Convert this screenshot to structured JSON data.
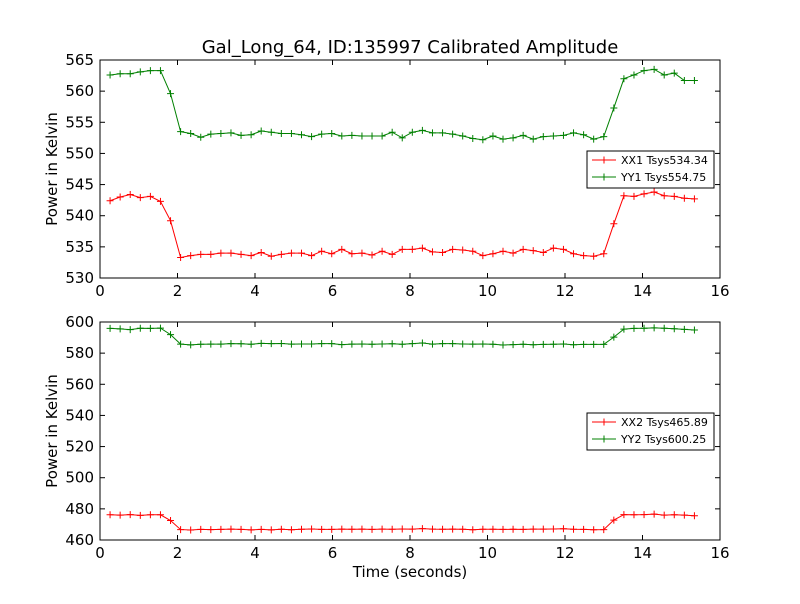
{
  "figure": {
    "title": "Gal_Long_64, ID:135997 Calibrated Amplitude"
  },
  "chart_data": [
    {
      "type": "line",
      "title": "Gal_Long_64, ID:135997 Calibrated Amplitude",
      "xlabel": "",
      "ylabel": "Power in Kelvin",
      "xlim": [
        0,
        16
      ],
      "ylim": [
        530,
        565
      ],
      "xticks": [
        "0",
        "2",
        "4",
        "6",
        "8",
        "10",
        "12",
        "14",
        "16"
      ],
      "yticks": [
        "530",
        "535",
        "540",
        "545",
        "550",
        "555",
        "560",
        "565"
      ],
      "grid": false,
      "legend_position": "center-right",
      "x": [
        0.26,
        0.52,
        0.78,
        1.04,
        1.3,
        1.56,
        1.82,
        2.08,
        2.34,
        2.6,
        2.86,
        3.12,
        3.38,
        3.64,
        3.9,
        4.16,
        4.42,
        4.68,
        4.94,
        5.2,
        5.46,
        5.72,
        5.98,
        6.24,
        6.5,
        6.76,
        7.02,
        7.28,
        7.54,
        7.8,
        8.06,
        8.32,
        8.58,
        8.84,
        9.1,
        9.36,
        9.62,
        9.88,
        10.14,
        10.4,
        10.66,
        10.92,
        11.18,
        11.44,
        11.7,
        11.96,
        12.22,
        12.48,
        12.74,
        13.0,
        13.26,
        13.52,
        13.78,
        14.04,
        14.3,
        14.56,
        14.82,
        15.08,
        15.34
      ],
      "series": [
        {
          "name": "XX1 Tsys534.34",
          "color": "#ff0000",
          "values": [
            542.4,
            543.0,
            543.4,
            542.9,
            543.1,
            542.3,
            539.2,
            533.3,
            533.6,
            533.8,
            533.8,
            534.0,
            534.0,
            533.8,
            533.6,
            534.1,
            533.5,
            533.8,
            534.0,
            534.0,
            533.6,
            534.3,
            533.9,
            534.6,
            533.9,
            534.0,
            533.7,
            534.3,
            533.8,
            534.6,
            534.6,
            534.8,
            534.2,
            534.1,
            534.6,
            534.5,
            534.3,
            533.6,
            533.9,
            534.3,
            534.0,
            534.6,
            534.4,
            534.1,
            534.8,
            534.6,
            533.9,
            533.6,
            533.5,
            533.9,
            538.7,
            543.2,
            543.1,
            543.5,
            543.8,
            543.2,
            543.1,
            542.8,
            542.7
          ]
        },
        {
          "name": "YY1 Tsys554.75",
          "color": "#008000",
          "values": [
            562.6,
            562.8,
            562.8,
            563.1,
            563.3,
            563.3,
            559.6,
            553.5,
            553.2,
            552.6,
            553.1,
            553.2,
            553.3,
            552.9,
            553.0,
            553.6,
            553.4,
            553.2,
            553.2,
            553.0,
            552.7,
            553.1,
            553.2,
            552.8,
            552.9,
            552.8,
            552.8,
            552.8,
            553.4,
            552.5,
            553.4,
            553.7,
            553.3,
            553.3,
            553.1,
            552.8,
            552.4,
            552.2,
            552.8,
            552.3,
            552.5,
            552.9,
            552.3,
            552.7,
            552.8,
            552.9,
            553.3,
            553.0,
            552.3,
            552.7,
            557.3,
            562.0,
            562.6,
            563.3,
            563.5,
            562.6,
            562.9,
            561.7,
            561.7
          ]
        }
      ]
    },
    {
      "type": "line",
      "title": "",
      "xlabel": "Time (seconds)",
      "ylabel": "Power in Kelvin",
      "xlim": [
        0,
        16
      ],
      "ylim": [
        460,
        600
      ],
      "xticks": [
        "0",
        "2",
        "4",
        "6",
        "8",
        "10",
        "12",
        "14",
        "16"
      ],
      "yticks": [
        "460",
        "480",
        "500",
        "520",
        "540",
        "560",
        "580",
        "600"
      ],
      "grid": false,
      "legend_position": "center-right",
      "x": [
        0.26,
        0.52,
        0.78,
        1.04,
        1.3,
        1.56,
        1.82,
        2.08,
        2.34,
        2.6,
        2.86,
        3.12,
        3.38,
        3.64,
        3.9,
        4.16,
        4.42,
        4.68,
        4.94,
        5.2,
        5.46,
        5.72,
        5.98,
        6.24,
        6.5,
        6.76,
        7.02,
        7.28,
        7.54,
        7.8,
        8.06,
        8.32,
        8.58,
        8.84,
        9.1,
        9.36,
        9.62,
        9.88,
        10.14,
        10.4,
        10.66,
        10.92,
        11.18,
        11.44,
        11.7,
        11.96,
        12.22,
        12.48,
        12.74,
        13.0,
        13.26,
        13.52,
        13.78,
        14.04,
        14.3,
        14.56,
        14.82,
        15.08,
        15.34
      ],
      "series": [
        {
          "name": "XX2 Tsys465.89",
          "color": "#ff0000",
          "values": [
            476.2,
            476.0,
            476.3,
            475.8,
            476.2,
            476.2,
            472.5,
            466.7,
            466.4,
            466.8,
            466.7,
            466.8,
            467.0,
            466.8,
            466.5,
            466.8,
            466.5,
            466.9,
            466.6,
            466.9,
            467.1,
            466.8,
            466.8,
            467.0,
            466.9,
            467.0,
            466.8,
            467.0,
            466.9,
            467.1,
            467.0,
            467.3,
            467.0,
            466.9,
            467.0,
            466.9,
            466.6,
            466.9,
            466.9,
            466.8,
            466.9,
            466.8,
            467.0,
            467.0,
            467.1,
            467.2,
            466.9,
            466.8,
            466.6,
            466.7,
            472.8,
            476.3,
            476.2,
            476.3,
            476.6,
            476.0,
            476.2,
            476.0,
            475.6
          ]
        },
        {
          "name": "YY2 Tsys600.25",
          "color": "#008000",
          "values": [
            595.9,
            595.6,
            595.1,
            596.0,
            595.9,
            596.1,
            591.9,
            585.8,
            585.3,
            585.7,
            585.8,
            585.8,
            586.1,
            586.0,
            585.7,
            586.3,
            586.1,
            586.2,
            585.8,
            585.9,
            585.9,
            586.1,
            586.1,
            585.5,
            585.8,
            585.9,
            585.7,
            585.9,
            586.0,
            585.7,
            586.1,
            586.5,
            585.8,
            586.1,
            586.1,
            585.9,
            585.8,
            585.9,
            585.7,
            585.2,
            585.5,
            585.7,
            585.4,
            585.6,
            585.7,
            585.9,
            585.4,
            585.6,
            585.6,
            585.6,
            590.3,
            595.4,
            595.9,
            596.0,
            596.2,
            596.0,
            595.7,
            595.3,
            594.9
          ]
        }
      ]
    }
  ]
}
